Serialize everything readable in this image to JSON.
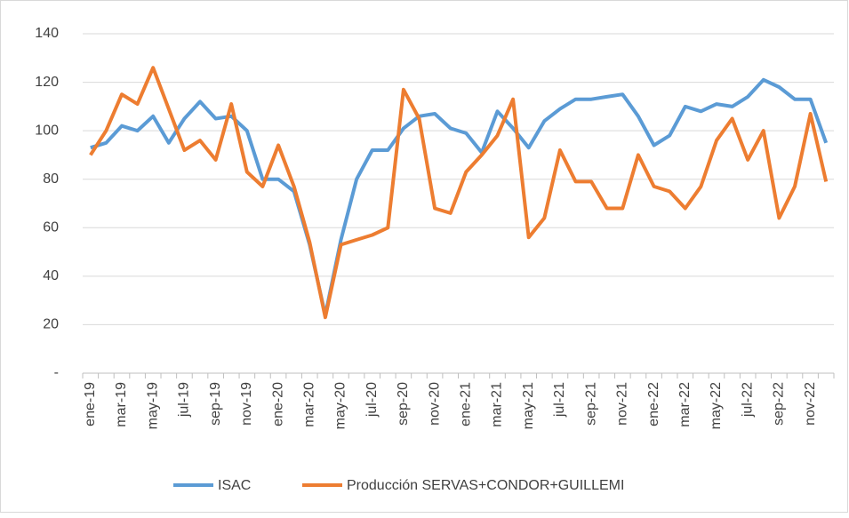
{
  "chart_data": {
    "type": "line",
    "categories": [
      "ene-19",
      null,
      "mar-19",
      null,
      "may-19",
      null,
      "jul-19",
      null,
      "sep-19",
      null,
      "nov-19",
      null,
      "ene-20",
      null,
      "mar-20",
      null,
      "may-20",
      null,
      "jul-20",
      null,
      "sep-20",
      null,
      "nov-20",
      null,
      "ene-21",
      null,
      "mar-21",
      null,
      "may-21",
      null,
      "jul-21",
      null,
      "sep-21",
      null,
      "nov-21",
      null,
      "ene-22",
      null,
      "mar-22",
      null,
      "may-22",
      null,
      "jul-22",
      null,
      "sep-22",
      null,
      "nov-22",
      null
    ],
    "series": [
      {
        "name": "ISAC",
        "color": "#5b9bd5",
        "values": [
          93,
          95,
          102,
          100,
          106,
          95,
          105,
          112,
          105,
          106,
          100,
          80,
          80,
          75,
          53,
          24,
          55,
          80,
          92,
          92,
          101,
          106,
          107,
          101,
          99,
          91,
          108,
          101,
          93,
          104,
          109,
          113,
          113,
          114,
          115,
          106,
          94,
          98,
          110,
          108,
          111,
          110,
          114,
          121,
          118,
          113,
          113,
          95
        ]
      },
      {
        "name": "Producción SERVAS+CONDOR+GUILLEMI",
        "color": "#ed7d31",
        "values": [
          90,
          100,
          115,
          111,
          126,
          109,
          92,
          96,
          88,
          111,
          83,
          77,
          94,
          77,
          54,
          23,
          53,
          55,
          57,
          60,
          117,
          105,
          68,
          66,
          83,
          90,
          98,
          113,
          56,
          64,
          92,
          79,
          79,
          68,
          68,
          90,
          77,
          75,
          68,
          77,
          96,
          105,
          88,
          100,
          64,
          77,
          107,
          79
        ]
      }
    ],
    "ylim": [
      0,
      140
    ],
    "yticks": [
      {
        "value": 0,
        "label": "-"
      },
      20,
      40,
      60,
      80,
      100,
      120,
      140
    ],
    "grid": true,
    "legend": "bottom"
  }
}
